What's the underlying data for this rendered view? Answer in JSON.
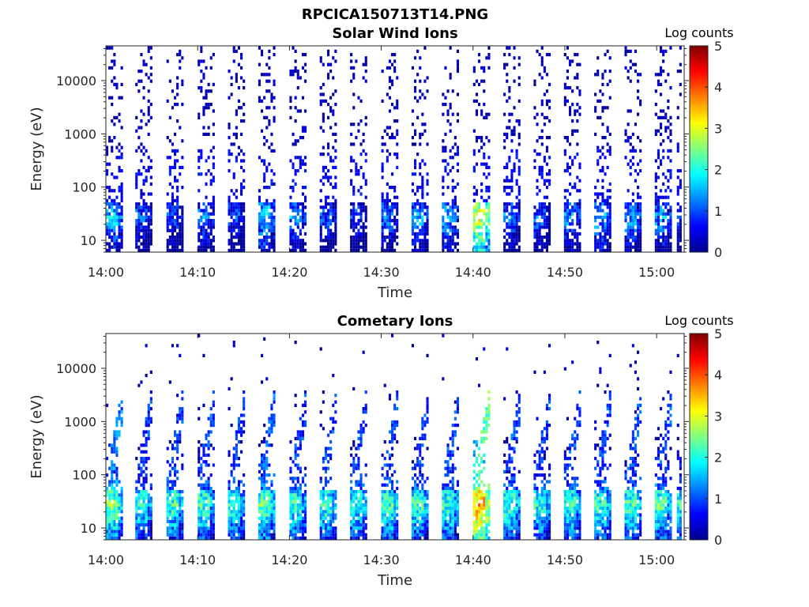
{
  "figure_title": "RPCICA150713T14.PNG",
  "colorbar_label": "Log counts",
  "colormap": [
    "#00008f",
    "#0000ff",
    "#0080ff",
    "#00ffff",
    "#80ff80",
    "#ffff00",
    "#ff8000",
    "#ff0000",
    "#800000"
  ],
  "chart_data": [
    {
      "type": "heatmap",
      "title": "Solar Wind Ions",
      "xlabel": "Time",
      "ylabel": "Energy (eV)",
      "x_ticks": [
        "14:00",
        "14:10",
        "14:20",
        "14:30",
        "14:40",
        "14:50",
        "15:00"
      ],
      "x_tick_minutes": [
        0,
        10,
        20,
        30,
        40,
        50,
        60
      ],
      "xlim_minutes": [
        0,
        63
      ],
      "y_scale": "log",
      "y_ticks": [
        "10",
        "100",
        "1000",
        "10000"
      ],
      "y_tick_values": [
        10,
        100,
        1000,
        10000
      ],
      "ylim": [
        6,
        45000
      ],
      "colorbar_ticks": [
        "0",
        "1",
        "2",
        "3",
        "4",
        "5"
      ],
      "clim": [
        0,
        5
      ],
      "sweep_start_minutes": [
        0,
        3.2,
        6.6,
        10,
        13.3,
        16.6,
        20,
        23.3,
        26.6,
        30,
        33.3,
        36.6,
        40,
        43.3,
        46.6,
        49.9,
        53.2,
        56.5,
        59.8,
        62.2
      ],
      "peak_log_counts": [
        2.2,
        1.6,
        1.5,
        1.8,
        1.5,
        2.3,
        1.9,
        1.6,
        1.5,
        1.7,
        2.0,
        2.1,
        3.6,
        1.8,
        1.7,
        1.9,
        2.1,
        2.0,
        2.0,
        1.6
      ]
    },
    {
      "type": "heatmap",
      "title": "Cometary Ions",
      "xlabel": "Time",
      "ylabel": "Energy (eV)",
      "x_ticks": [
        "14:00",
        "14:10",
        "14:20",
        "14:30",
        "14:40",
        "14:50",
        "15:00"
      ],
      "x_tick_minutes": [
        0,
        10,
        20,
        30,
        40,
        50,
        60
      ],
      "xlim_minutes": [
        0,
        63
      ],
      "y_scale": "log",
      "y_ticks": [
        "10",
        "100",
        "1000",
        "10000"
      ],
      "y_tick_values": [
        10,
        100,
        1000,
        10000
      ],
      "ylim": [
        6,
        45000
      ],
      "colorbar_ticks": [
        "0",
        "1",
        "2",
        "3",
        "4",
        "5"
      ],
      "clim": [
        0,
        5
      ],
      "sweep_start_minutes": [
        0,
        3.2,
        6.6,
        10,
        13.3,
        16.6,
        20,
        23.3,
        26.6,
        30,
        33.3,
        36.6,
        40,
        43.3,
        46.6,
        49.9,
        53.2,
        56.5,
        59.8,
        62.2
      ],
      "peak_log_counts": [
        3.1,
        2.7,
        2.8,
        2.8,
        2.7,
        3.0,
        2.8,
        2.8,
        2.7,
        2.8,
        2.8,
        2.8,
        4.2,
        2.8,
        2.7,
        2.8,
        2.8,
        2.8,
        2.9,
        2.7
      ]
    }
  ]
}
